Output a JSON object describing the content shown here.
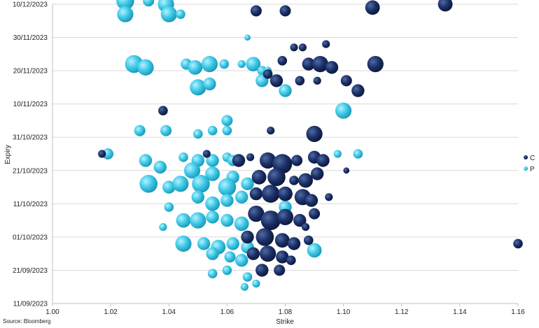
{
  "chart_data": {
    "type": "scatter",
    "subtype": "bubble",
    "xlabel": "Strike",
    "ylabel": "Expiry",
    "source": "Source: Bloomberg",
    "xlim": [
      1.0,
      1.16
    ],
    "x_ticks": [
      "1.00",
      "1.02",
      "1.04",
      "1.06",
      "1.08",
      "1.10",
      "1.12",
      "1.14",
      "1.16"
    ],
    "y_ticks": [
      "11/09/2023",
      "21/09/2023",
      "01/10/2023",
      "11/10/2023",
      "21/10/2023",
      "31/10/2023",
      "10/11/2023",
      "20/11/2023",
      "30/11/2023",
      "10/12/2023"
    ],
    "ylim": [
      "11/09/2023",
      "10/12/2023"
    ],
    "grid": "horizontal",
    "legend_position": "right",
    "series": [
      {
        "name": "C",
        "color": "#14285a",
        "points": [
          [
            1.07,
            "2023-12-08",
            0.5
          ],
          [
            1.08,
            "2023-12-08",
            0.5
          ],
          [
            1.11,
            "2023-12-09",
            0.7
          ],
          [
            1.135,
            "2023-12-10",
            0.7
          ],
          [
            1.094,
            "2023-11-28",
            0.3
          ],
          [
            1.086,
            "2023-11-27",
            0.3
          ],
          [
            1.083,
            "2023-11-27",
            0.3
          ],
          [
            1.079,
            "2023-11-23",
            0.4
          ],
          [
            1.088,
            "2023-11-22",
            0.6
          ],
          [
            1.092,
            "2023-11-22",
            0.8
          ],
          [
            1.096,
            "2023-11-21",
            0.6
          ],
          [
            1.111,
            "2023-11-22",
            0.8
          ],
          [
            1.074,
            "2023-11-19",
            0.4
          ],
          [
            1.077,
            "2023-11-17",
            0.6
          ],
          [
            1.085,
            "2023-11-17",
            0.4
          ],
          [
            1.091,
            "2023-11-17",
            0.3
          ],
          [
            1.101,
            "2023-11-17",
            0.5
          ],
          [
            1.105,
            "2023-11-14",
            0.6
          ],
          [
            1.038,
            "2023-11-08",
            0.4
          ],
          [
            1.075,
            "2023-11-02",
            0.3
          ],
          [
            1.09,
            "2023-11-01",
            0.8
          ],
          [
            1.017,
            "2023-10-26",
            0.3
          ],
          [
            1.053,
            "2023-10-26",
            0.3
          ],
          [
            1.064,
            "2023-10-24",
            0.6
          ],
          [
            1.068,
            "2023-10-25",
            0.3
          ],
          [
            1.074,
            "2023-10-24",
            0.8
          ],
          [
            1.079,
            "2023-10-23",
            1.0
          ],
          [
            1.084,
            "2023-10-24",
            0.5
          ],
          [
            1.09,
            "2023-10-25",
            0.6
          ],
          [
            1.093,
            "2023-10-24",
            0.6
          ],
          [
            1.101,
            "2023-10-21",
            0.2
          ],
          [
            1.071,
            "2023-10-19",
            0.7
          ],
          [
            1.077,
            "2023-10-19",
            0.9
          ],
          [
            1.083,
            "2023-10-18",
            0.4
          ],
          [
            1.087,
            "2023-10-18",
            0.7
          ],
          [
            1.091,
            "2023-10-20",
            0.6
          ],
          [
            1.07,
            "2023-10-14",
            0.6
          ],
          [
            1.075,
            "2023-10-14",
            0.9
          ],
          [
            1.08,
            "2023-10-14",
            0.7
          ],
          [
            1.086,
            "2023-10-13",
            0.8
          ],
          [
            1.089,
            "2023-10-12",
            0.6
          ],
          [
            1.095,
            "2023-10-13",
            0.3
          ],
          [
            1.07,
            "2023-10-08",
            0.8
          ],
          [
            1.075,
            "2023-10-06",
            1.0
          ],
          [
            1.08,
            "2023-10-07",
            0.8
          ],
          [
            1.085,
            "2023-10-06",
            0.6
          ],
          [
            1.09,
            "2023-10-08",
            0.5
          ],
          [
            1.087,
            "2023-10-04",
            0.3
          ],
          [
            1.067,
            "2023-10-01",
            0.6
          ],
          [
            1.073,
            "2023-10-01",
            0.9
          ],
          [
            1.079,
            "2023-09-30",
            0.7
          ],
          [
            1.083,
            "2023-09-29",
            0.6
          ],
          [
            1.088,
            "2023-09-30",
            0.4
          ],
          [
            1.16,
            "2023-09-29",
            0.4
          ],
          [
            1.069,
            "2023-09-26",
            0.6
          ],
          [
            1.074,
            "2023-09-26",
            0.8
          ],
          [
            1.079,
            "2023-09-25",
            0.6
          ],
          [
            1.072,
            "2023-09-21",
            0.6
          ],
          [
            1.078,
            "2023-09-21",
            0.5
          ],
          [
            1.082,
            "2023-09-24",
            0.4
          ]
        ]
      },
      {
        "name": "P",
        "color": "#3cc8e6",
        "points": [
          [
            1.025,
            "2023-12-11",
            0.9
          ],
          [
            1.039,
            "2023-12-10",
            0.8
          ],
          [
            1.04,
            "2023-12-07",
            0.8
          ],
          [
            1.044,
            "2023-12-07",
            0.4
          ],
          [
            1.025,
            "2023-12-07",
            0.8
          ],
          [
            1.033,
            "2023-12-11",
            0.5
          ],
          [
            1.067,
            "2023-11-30",
            0.2
          ],
          [
            1.028,
            "2023-11-22",
            0.9
          ],
          [
            1.032,
            "2023-11-21",
            0.8
          ],
          [
            1.046,
            "2023-11-22",
            0.5
          ],
          [
            1.049,
            "2023-11-21",
            0.7
          ],
          [
            1.054,
            "2023-11-22",
            0.8
          ],
          [
            1.059,
            "2023-11-22",
            0.4
          ],
          [
            1.065,
            "2023-11-22",
            0.3
          ],
          [
            1.069,
            "2023-11-22",
            0.7
          ],
          [
            1.072,
            "2023-11-20",
            0.4
          ],
          [
            1.074,
            "2023-11-20",
            0.3
          ],
          [
            1.05,
            "2023-11-15",
            0.8
          ],
          [
            1.054,
            "2023-11-16",
            0.6
          ],
          [
            1.072,
            "2023-11-17",
            0.6
          ],
          [
            1.08,
            "2023-11-14",
            0.6
          ],
          [
            1.06,
            "2023-11-05",
            0.5
          ],
          [
            1.1,
            "2023-11-08",
            0.8
          ],
          [
            1.03,
            "2023-11-02",
            0.5
          ],
          [
            1.039,
            "2023-11-02",
            0.5
          ],
          [
            1.05,
            "2023-11-01",
            0.4
          ],
          [
            1.055,
            "2023-11-02",
            0.4
          ],
          [
            1.06,
            "2023-11-02",
            0.4
          ],
          [
            1.019,
            "2023-10-26",
            0.5
          ],
          [
            1.045,
            "2023-10-25",
            0.4
          ],
          [
            1.05,
            "2023-10-24",
            0.6
          ],
          [
            1.055,
            "2023-10-24",
            0.6
          ],
          [
            1.06,
            "2023-10-25",
            0.4
          ],
          [
            1.062,
            "2023-10-24",
            0.5
          ],
          [
            1.098,
            "2023-10-26",
            0.3
          ],
          [
            1.105,
            "2023-10-26",
            0.4
          ],
          [
            1.032,
            "2023-10-24",
            0.6
          ],
          [
            1.037,
            "2023-10-22",
            0.6
          ],
          [
            1.048,
            "2023-10-21",
            0.8
          ],
          [
            1.055,
            "2023-10-20",
            0.7
          ],
          [
            1.062,
            "2023-10-19",
            0.6
          ],
          [
            1.033,
            "2023-10-17",
            0.9
          ],
          [
            1.04,
            "2023-10-16",
            0.6
          ],
          [
            1.044,
            "2023-10-17",
            0.8
          ],
          [
            1.051,
            "2023-10-17",
            0.9
          ],
          [
            1.06,
            "2023-10-16",
            0.9
          ],
          [
            1.067,
            "2023-10-17",
            0.6
          ],
          [
            1.05,
            "2023-10-13",
            0.6
          ],
          [
            1.055,
            "2023-10-11",
            0.7
          ],
          [
            1.06,
            "2023-10-12",
            0.6
          ],
          [
            1.065,
            "2023-10-13",
            0.6
          ],
          [
            1.08,
            "2023-10-10",
            0.6
          ],
          [
            1.04,
            "2023-10-10",
            0.4
          ],
          [
            1.045,
            "2023-10-06",
            0.7
          ],
          [
            1.05,
            "2023-10-06",
            0.8
          ],
          [
            1.055,
            "2023-10-07",
            0.6
          ],
          [
            1.06,
            "2023-10-06",
            0.6
          ],
          [
            1.065,
            "2023-10-05",
            0.7
          ],
          [
            1.038,
            "2023-10-04",
            0.3
          ],
          [
            1.045,
            "2023-09-29",
            0.8
          ],
          [
            1.052,
            "2023-09-29",
            0.6
          ],
          [
            1.057,
            "2023-09-28",
            0.7
          ],
          [
            1.062,
            "2023-09-29",
            0.6
          ],
          [
            1.067,
            "2023-09-28",
            0.6
          ],
          [
            1.09,
            "2023-09-27",
            0.7
          ],
          [
            1.055,
            "2023-09-26",
            0.6
          ],
          [
            1.061,
            "2023-09-25",
            0.5
          ],
          [
            1.065,
            "2023-09-24",
            0.6
          ],
          [
            1.06,
            "2023-09-21",
            0.4
          ],
          [
            1.055,
            "2023-09-20",
            0.4
          ],
          [
            1.067,
            "2023-09-19",
            0.4
          ],
          [
            1.07,
            "2023-09-17",
            0.3
          ],
          [
            1.066,
            "2023-09-16",
            0.3
          ]
        ]
      }
    ]
  }
}
